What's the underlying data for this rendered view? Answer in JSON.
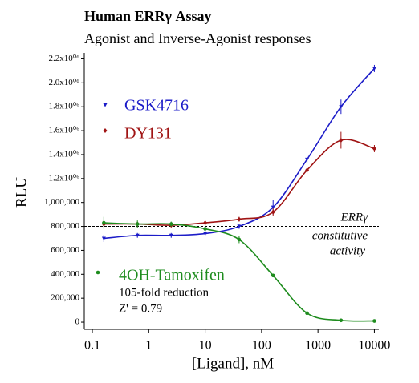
{
  "chart_data": {
    "type": "scatter",
    "title": "Human ERRγ Assay",
    "subtitle": "Agonist and Inverse-Agonist responses",
    "xlabel": "[Ligand], nM",
    "ylabel": "RLU",
    "log_x": true,
    "x": [
      0.16,
      0.63,
      2.5,
      10,
      40,
      160,
      640,
      2560,
      10000
    ],
    "series": [
      {
        "name": "GSK4716",
        "color": "#1c1cc8",
        "marker": "triangle",
        "values": [
          700000,
          725000,
          725000,
          740000,
          800000,
          960000,
          1360000,
          1800000,
          2120000
        ],
        "errors": [
          30000,
          20000,
          20000,
          20000,
          20000,
          60000,
          30000,
          60000,
          30000
        ]
      },
      {
        "name": "DY131",
        "color": "#a01414",
        "marker": "diamond",
        "values": [
          820000,
          820000,
          810000,
          830000,
          860000,
          920000,
          1270000,
          1520000,
          1450000
        ],
        "errors": [
          20000,
          20000,
          15000,
          20000,
          20000,
          30000,
          30000,
          70000,
          30000
        ]
      },
      {
        "name": "4OH-Tamoxifen",
        "color": "#1e8c1e",
        "marker": "circle",
        "values": [
          830000,
          820000,
          820000,
          780000,
          690000,
          390000,
          75000,
          15000,
          10000
        ],
        "errors": [
          50000,
          30000,
          20000,
          30000,
          30000,
          15000,
          10000,
          5000,
          5000
        ]
      }
    ],
    "reference_line": 800000,
    "reference_label": [
      "ERRγ",
      "constitutive",
      "activity"
    ],
    "annotations": [
      "105-fold reduction",
      "Z' = 0.79"
    ],
    "xlim": [
      0.072,
      12000
    ],
    "xticks": [
      0.1,
      1,
      10,
      100,
      1000,
      10000
    ],
    "ylim": [
      -60000,
      2250000
    ],
    "yticks": [
      0,
      {
        "value": 200000,
        "label": "200,000"
      },
      {
        "value": 400000,
        "label": "400,000"
      },
      {
        "value": 600000,
        "label": "600,000"
      },
      {
        "value": 800000,
        "label": "800,000"
      },
      {
        "value": 1000000,
        "label": "1,000,000"
      },
      {
        "value": 1200000,
        "label": "1.2x10⁰⁶"
      },
      {
        "value": 1400000,
        "label": "1.4x10⁰⁶"
      },
      {
        "value": 1600000,
        "label": "1.6x10⁰⁶"
      },
      {
        "value": 1800000,
        "label": "1.8x10⁰⁶"
      },
      {
        "value": 2000000,
        "label": "2.0x10⁰⁶"
      },
      {
        "value": 2200000,
        "label": "2.2x10⁰⁶"
      }
    ]
  }
}
